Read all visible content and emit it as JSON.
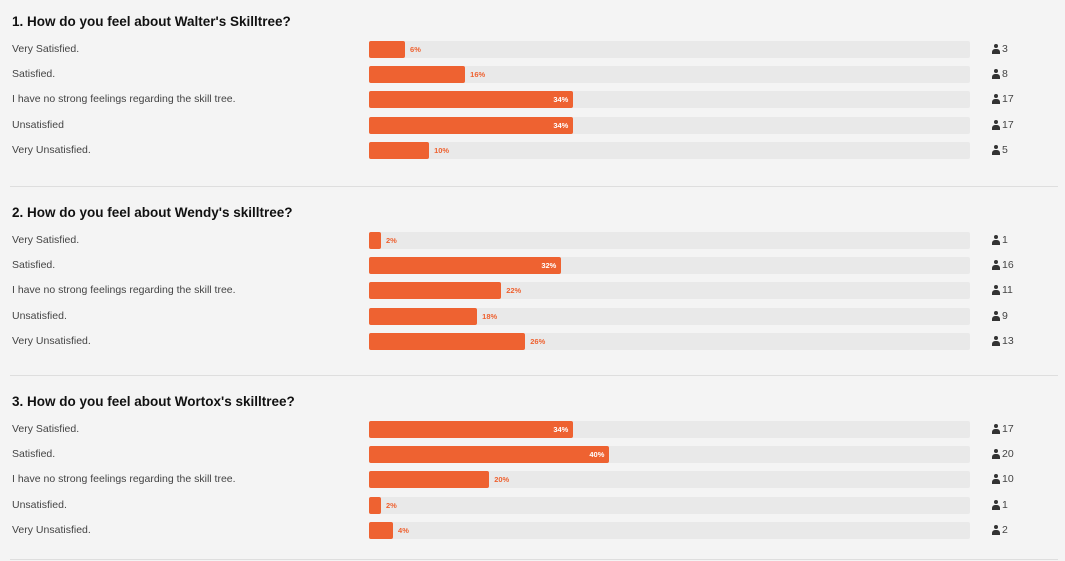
{
  "colors": {
    "accent": "#ee6231",
    "track": "#e9e9e9"
  },
  "icons": {
    "respondents": "user-icon"
  },
  "questions": [
    {
      "title": "1. How do you feel about Walter's Skilltree?",
      "options": [
        {
          "label": "Very Satisfied.",
          "percent": 6,
          "count": "3"
        },
        {
          "label": "Satisfied.",
          "percent": 16,
          "count": "8"
        },
        {
          "label": "I have no strong feelings regarding the skill tree.",
          "percent": 34,
          "count": "17"
        },
        {
          "label": "Unsatisfied",
          "percent": 34,
          "count": "17"
        },
        {
          "label": "Very Unsatisfied.",
          "percent": 10,
          "count": "5"
        }
      ]
    },
    {
      "title": "2. How do you feel about Wendy's skilltree?",
      "options": [
        {
          "label": "Very Satisfied.",
          "percent": 2,
          "count": "1"
        },
        {
          "label": "Satisfied.",
          "percent": 32,
          "count": "16"
        },
        {
          "label": "I have no strong feelings regarding the skill tree.",
          "percent": 22,
          "count": "11"
        },
        {
          "label": "Unsatisfied.",
          "percent": 18,
          "count": "9"
        },
        {
          "label": "Very Unsatisfied.",
          "percent": 26,
          "count": "13"
        }
      ]
    },
    {
      "title": "3. How do you feel about Wortox's skilltree?",
      "options": [
        {
          "label": "Very Satisfied.",
          "percent": 34,
          "count": "17"
        },
        {
          "label": "Satisfied.",
          "percent": 40,
          "count": "20"
        },
        {
          "label": "I have no strong feelings regarding the skill tree.",
          "percent": 20,
          "count": "10"
        },
        {
          "label": "Unsatisfied.",
          "percent": 2,
          "count": "1"
        },
        {
          "label": "Very Unsatisfied.",
          "percent": 4,
          "count": "2"
        }
      ]
    }
  ]
}
